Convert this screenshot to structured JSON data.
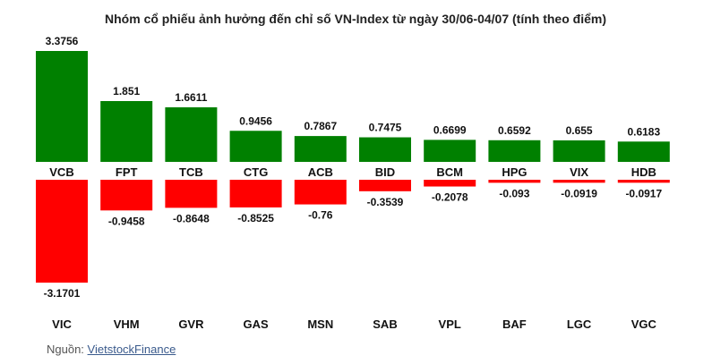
{
  "chart_data": {
    "type": "bar",
    "title": "Nhóm cổ phiếu ảnh hưởng đến chỉ số VN-Index từ ngày 30/06-04/07 (tính theo điểm)",
    "series": [
      {
        "categories": [
          "VCB",
          "FPT",
          "TCB",
          "CTG",
          "ACB",
          "BID",
          "BCM",
          "HPG",
          "VIX",
          "HDB"
        ],
        "values": [
          3.3756,
          1.851,
          1.6611,
          0.9456,
          0.7867,
          0.7475,
          0.6699,
          0.6592,
          0.655,
          0.6183
        ],
        "labels": [
          "3.3756",
          "1.851",
          "1.6611",
          "0.9456",
          "0.7867",
          "0.7475",
          "0.6699",
          "0.6592",
          "0.655",
          "0.6183"
        ],
        "color": "#008000"
      },
      {
        "categories": [
          "VIC",
          "VHM",
          "GVR",
          "GAS",
          "MSN",
          "SAB",
          "VPL",
          "BAF",
          "LGC",
          "VGC"
        ],
        "values": [
          -3.1701,
          -0.9458,
          -0.8648,
          -0.8525,
          -0.76,
          -0.3539,
          -0.2078,
          -0.093,
          -0.0919,
          -0.0917
        ],
        "labels": [
          "-3.1701",
          "-0.9458",
          "-0.8648",
          "-0.8525",
          "-0.76",
          "-0.3539",
          "-0.2078",
          "-0.093",
          "-0.0919",
          "-0.0917"
        ],
        "color": "#ff0000"
      }
    ]
  },
  "source": {
    "prefix": "Nguồn:",
    "link_text": "VietstockFinance"
  }
}
